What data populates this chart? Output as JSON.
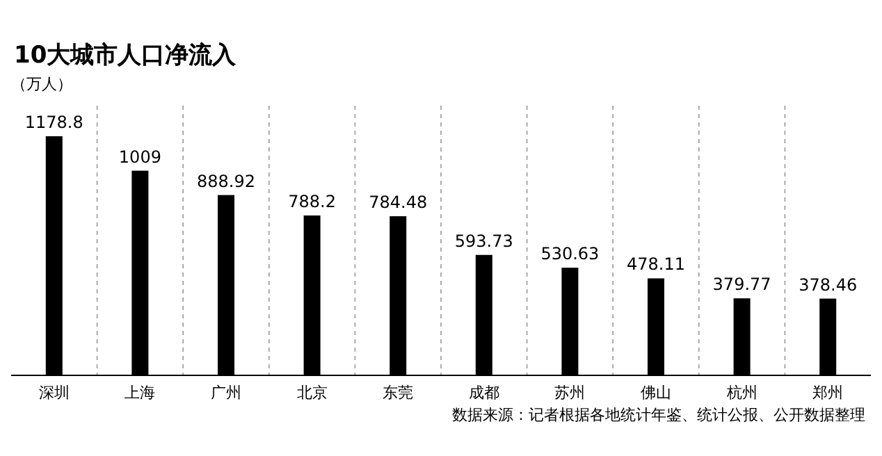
{
  "chart_data": {
    "type": "bar",
    "title": "10大城市人口净流入",
    "ylabel": "（万人）",
    "categories": [
      "深圳",
      "上海",
      "广州",
      "北京",
      "东莞",
      "成都",
      "苏州",
      "佛山",
      "杭州",
      "郑州"
    ],
    "values": [
      1178.8,
      1009,
      888.92,
      788.2,
      784.48,
      593.73,
      530.63,
      478.11,
      379.77,
      378.46
    ],
    "color": "#000000",
    "data_labels": true,
    "grid": "x",
    "annotations": [
      "数据来源：记者根据各地统计年鉴、统计公报、公开数据整理"
    ]
  }
}
